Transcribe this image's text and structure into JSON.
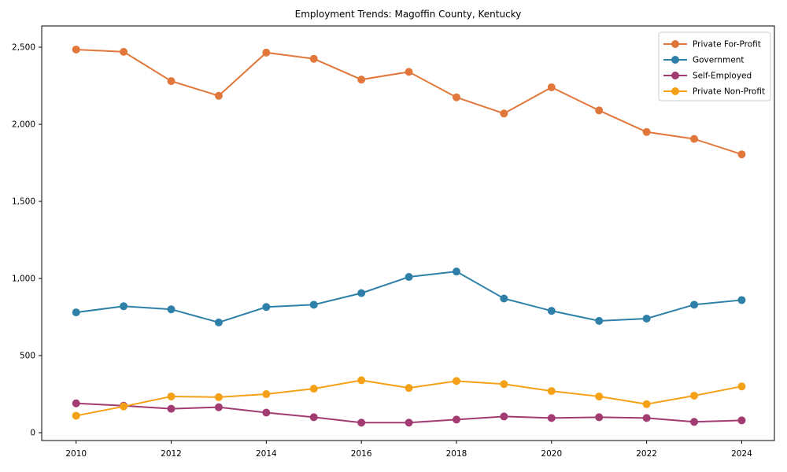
{
  "chart_data": {
    "type": "line",
    "title": "Employment Trends: Magoffin County, Kentucky",
    "x": [
      2010,
      2011,
      2012,
      2013,
      2014,
      2015,
      2016,
      2017,
      2018,
      2019,
      2020,
      2021,
      2022,
      2023,
      2024
    ],
    "x_tick_labels": [
      "2010",
      "2012",
      "2014",
      "2016",
      "2018",
      "2020",
      "2022",
      "2024"
    ],
    "x_tick_years": [
      2010,
      2012,
      2014,
      2016,
      2018,
      2020,
      2022,
      2024
    ],
    "y_ticks": [
      0,
      500,
      1000,
      1500,
      2000,
      2500
    ],
    "y_tick_labels": [
      "0",
      "500",
      "1,000",
      "1,500",
      "2,000",
      "2,500"
    ],
    "ylim": [
      -60,
      2640
    ],
    "grid": false,
    "legend_position": "upper right",
    "series": [
      {
        "name": "Private For-Profit",
        "color": "#E2773B",
        "values": [
          2485,
          2470,
          2280,
          2185,
          2465,
          2425,
          2290,
          2340,
          2175,
          2070,
          2240,
          2090,
          1950,
          1905,
          1805
        ]
      },
      {
        "name": "Government",
        "color": "#2E80A8",
        "values": [
          780,
          820,
          800,
          715,
          815,
          830,
          905,
          1010,
          1045,
          870,
          790,
          725,
          740,
          830,
          860
        ]
      },
      {
        "name": "Self-Employed",
        "color": "#A23B72",
        "values": [
          190,
          175,
          155,
          165,
          130,
          100,
          65,
          65,
          85,
          105,
          95,
          100,
          95,
          70,
          80
        ]
      },
      {
        "name": "Private Non-Profit",
        "color": "#F5A118",
        "values": [
          110,
          170,
          235,
          230,
          250,
          285,
          340,
          290,
          335,
          315,
          270,
          235,
          185,
          240,
          300
        ]
      }
    ]
  }
}
